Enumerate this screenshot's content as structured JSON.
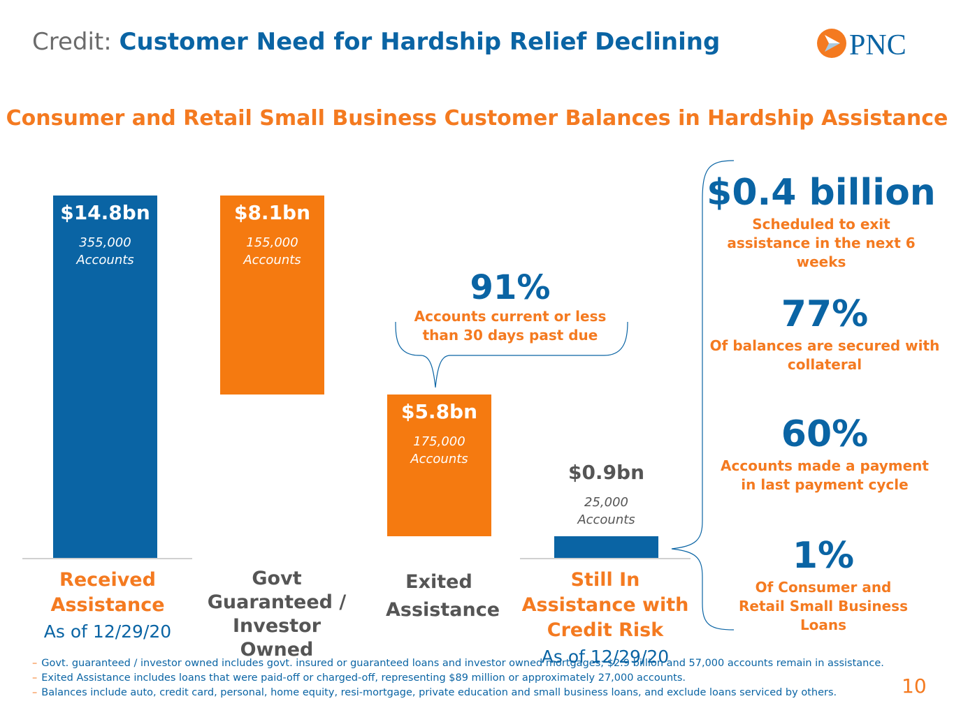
{
  "header": {
    "title_prefix": "Credit:",
    "title_main": "Customer Need for Hardship Relief Declining",
    "logo_text": "PNC"
  },
  "chart_data": {
    "type": "bar",
    "title": "Consumer and Retail Small Business Customer Balances in Hardship Assistance",
    "unit": "$bn",
    "bars": [
      {
        "category": "Received Assistance",
        "sublabel": "As of 12/29/20",
        "value": 14.8,
        "value_label": "$14.8bn",
        "accounts": "355,000",
        "accounts_label": "Accounts",
        "color": "#0a64a4"
      },
      {
        "category": "Govt Guaranteed / Investor Owned",
        "sublabel": "",
        "value": 8.1,
        "value_label": "$8.1bn",
        "accounts": "155,000",
        "accounts_label": "Accounts",
        "color": "#f57a10"
      },
      {
        "category": "Exited Assistance",
        "sublabel": "",
        "value": 5.8,
        "value_label": "$5.8bn",
        "accounts": "175,000",
        "accounts_label": "Accounts",
        "color": "#f57a10"
      },
      {
        "category": "Still In Assistance with Credit Risk",
        "sublabel": "As of 12/29/20",
        "value": 0.9,
        "value_label": "$0.9bn",
        "accounts": "25,000",
        "accounts_label": "Accounts",
        "color": "#0a64a4"
      }
    ],
    "annotation": {
      "value": "91%",
      "text": "Accounts current or less than 30 days past due"
    }
  },
  "stats": [
    {
      "value": "$0.4 billion",
      "text": "Scheduled to exit assistance in the next 6 weeks"
    },
    {
      "value": "77%",
      "text": "Of balances are secured with collateral"
    },
    {
      "value": "60%",
      "text": "Accounts made a payment in last payment cycle"
    },
    {
      "value": "1%",
      "text": "Of Consumer and Retail Small Business Loans"
    }
  ],
  "footnotes": [
    "Govt. guaranteed / investor owned includes govt. insured or guaranteed loans and investor owned mortgages; $2.9 billion and 57,000 accounts remain in assistance.",
    "Exited Assistance includes loans that were paid-off or charged-off, representing $89 million or approximately 27,000 accounts.",
    "Balances include auto, credit card, personal, home equity, resi-mortgage, private education and small business loans, and exclude loans serviced by others."
  ],
  "page_number": "10",
  "colors": {
    "blue": "#0a64a4",
    "orange": "#f47a20",
    "gray": "#555555"
  }
}
